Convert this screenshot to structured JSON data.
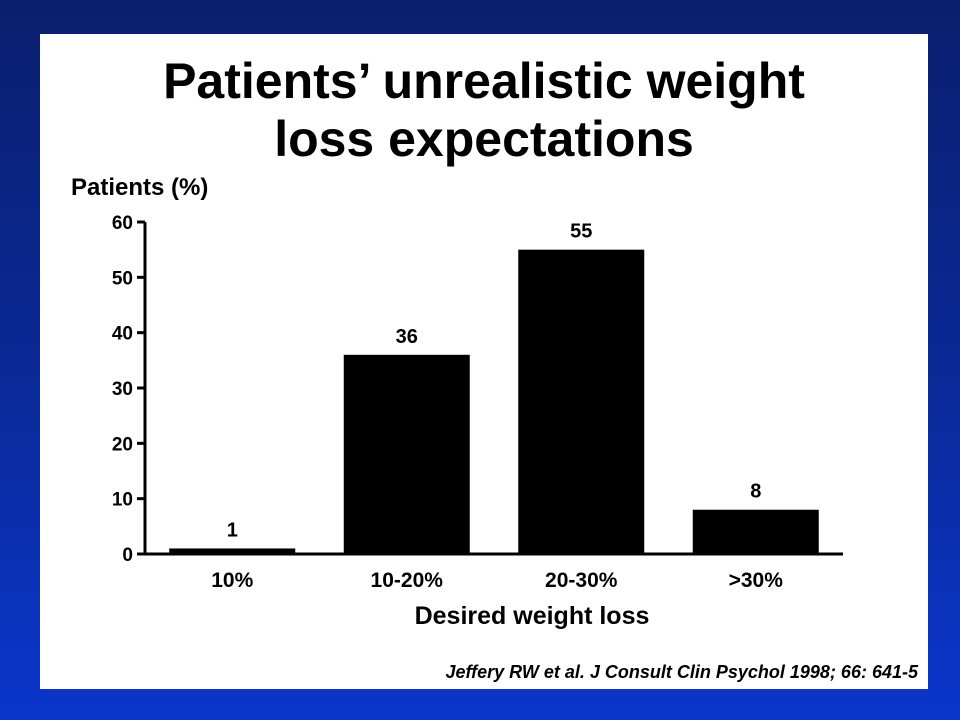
{
  "slide": {
    "title_line1": "Patients’ unrealistic weight",
    "title_line2": "loss expectations",
    "citation": "Jeffery RW et al. J Consult Clin Psychol 1998; 66: 641-5"
  },
  "chart_data": {
    "type": "bar",
    "categories": [
      "10%",
      "10-20%",
      "20-30%",
      ">30%"
    ],
    "values": [
      1,
      36,
      55,
      8
    ],
    "value_labels": [
      "1",
      "36",
      "55",
      "8"
    ],
    "ylabel": "Patients (%)",
    "xlabel": "Desired weight loss",
    "ylim": [
      0,
      60
    ],
    "yticks": [
      0,
      10,
      20,
      30,
      40,
      50,
      60
    ],
    "bar_color": "#000000",
    "grid": false
  }
}
